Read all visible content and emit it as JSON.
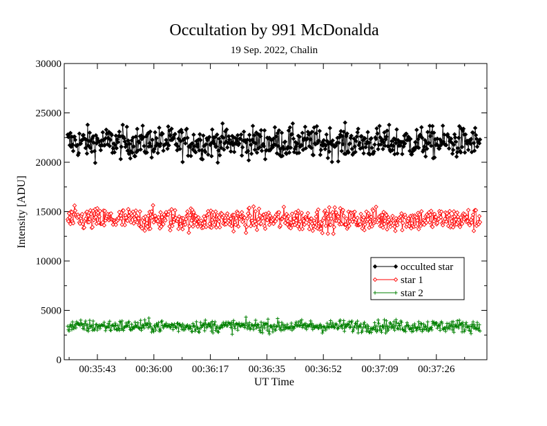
{
  "chart_data": {
    "type": "line",
    "title": "Occultation by 991 McDonalda",
    "subtitle": "19 Sep. 2022, Chalin",
    "xlabel": "UT Time",
    "ylabel": "Intensity [ADU]",
    "ylim": [
      0,
      30000
    ],
    "yticks": [
      "0",
      "5000",
      "10000",
      "15000",
      "20000",
      "25000",
      "30000"
    ],
    "xticks": [
      "00:35:43",
      "00:36:00",
      "00:36:17",
      "00:36:35",
      "00:36:52",
      "00:37:09",
      "00:37:26"
    ],
    "xlim_seconds_label_range": [
      "00:35:36",
      "00:37:44"
    ],
    "legend_position": "lower-right",
    "grid": false,
    "series": [
      {
        "name": "occulted star",
        "color": "#000000",
        "marker": "diamond-filled",
        "mean": 22000,
        "spread": 1500,
        "min": 18200,
        "max": 26300
      },
      {
        "name": "star 1",
        "color": "#ff0000",
        "marker": "diamond-open",
        "mean": 14200,
        "spread": 1100,
        "min": 11500,
        "max": 17800
      },
      {
        "name": "star 2",
        "color": "#008000",
        "marker": "cross",
        "mean": 3400,
        "spread": 600,
        "min": 1500,
        "max": 5600
      }
    ],
    "points_per_series": 600
  }
}
